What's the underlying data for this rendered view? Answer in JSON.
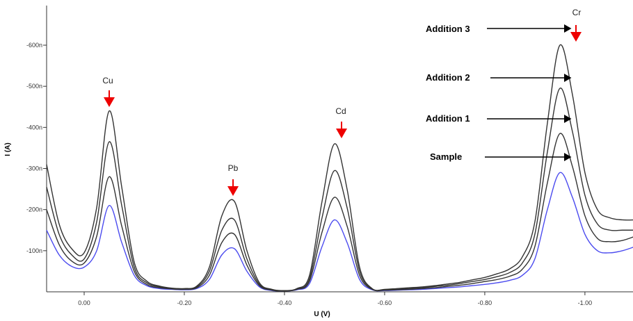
{
  "chart_data": {
    "type": "line",
    "x_label": "U (V)",
    "y_label": "I (A)",
    "annotations": [
      "Cu",
      "Pb",
      "Cd",
      "Cr"
    ],
    "x": [
      0.075,
      0.05,
      0.025,
      0,
      -0.025,
      -0.05,
      -0.075,
      -0.1,
      -0.125,
      -0.15,
      -0.175,
      -0.2,
      -0.225,
      -0.25,
      -0.275,
      -0.3,
      -0.325,
      -0.35,
      -0.375,
      -0.4,
      -0.425,
      -0.45,
      -0.475,
      -0.5,
      -0.525,
      -0.55,
      -0.575,
      -0.6,
      -0.625,
      -0.65,
      -0.675,
      -0.7,
      -0.725,
      -0.75,
      -0.775,
      -0.8,
      -0.825,
      -0.85,
      -0.875,
      -0.9,
      -0.925,
      -0.95,
      -0.975,
      -1.0,
      -1.025,
      -1.05,
      -1.075,
      -1.1
    ],
    "series": [
      {
        "name": "Sample",
        "color": "#4b4bef",
        "values": [
          -150,
          -90,
          -62,
          -60,
          -100,
          -210,
          -120,
          -40,
          -15,
          -8,
          -6,
          -5,
          -8,
          -30,
          -90,
          -105,
          -50,
          -12,
          -3,
          -2,
          -5,
          -20,
          -110,
          -175,
          -120,
          -30,
          -5,
          -3,
          -4,
          -5,
          -6,
          -8,
          -10,
          -12,
          -15,
          -18,
          -22,
          -28,
          -40,
          -80,
          -200,
          -290,
          -230,
          -140,
          -100,
          -95,
          -100,
          -110
        ]
      },
      {
        "name": "Addition 1",
        "color": "#333333",
        "values": [
          -200,
          -115,
          -75,
          -70,
          -135,
          -280,
          -160,
          -50,
          -18,
          -10,
          -7,
          -6,
          -10,
          -40,
          -120,
          -140,
          -65,
          -15,
          -4,
          -2,
          -6,
          -26,
          -145,
          -230,
          -160,
          -40,
          -6,
          -4,
          -5,
          -6,
          -8,
          -10,
          -13,
          -16,
          -20,
          -25,
          -30,
          -38,
          -55,
          -110,
          -265,
          -385,
          -305,
          -185,
          -130,
          -122,
          -125,
          -135
        ]
      },
      {
        "name": "Addition 2",
        "color": "#333333",
        "values": [
          -255,
          -140,
          -90,
          -80,
          -170,
          -365,
          -210,
          -60,
          -22,
          -12,
          -8,
          -7,
          -12,
          -50,
          -150,
          -175,
          -80,
          -18,
          -5,
          -3,
          -7,
          -32,
          -180,
          -295,
          -205,
          -50,
          -7,
          -5,
          -6,
          -8,
          -10,
          -13,
          -16,
          -20,
          -25,
          -30,
          -37,
          -47,
          -70,
          -140,
          -340,
          -495,
          -390,
          -235,
          -165,
          -150,
          -150,
          -150
        ]
      },
      {
        "name": "Addition 3",
        "color": "#333333",
        "values": [
          -310,
          -165,
          -105,
          -95,
          -205,
          -440,
          -255,
          -72,
          -26,
          -14,
          -9,
          -8,
          -14,
          -60,
          -185,
          -220,
          -100,
          -22,
          -6,
          -3,
          -8,
          -40,
          -220,
          -360,
          -250,
          -60,
          -8,
          -6,
          -8,
          -10,
          -12,
          -15,
          -19,
          -23,
          -29,
          -35,
          -44,
          -56,
          -85,
          -170,
          -410,
          -600,
          -480,
          -290,
          -200,
          -180,
          -175,
          -175
        ]
      }
    ],
    "xlim": [
      0.075,
      -1.096
    ],
    "xticks": [
      {
        "value": 0,
        "label": "0.00"
      },
      {
        "value": -0.2,
        "label": "-0.20"
      },
      {
        "value": -0.4,
        "label": "-0.40"
      },
      {
        "value": -0.6,
        "label": "-0.60"
      },
      {
        "value": -0.8,
        "label": "-0.80"
      },
      {
        "value": -1.0,
        "label": "-1.00"
      }
    ],
    "ylim": [
      0,
      -693
    ],
    "yticks": [
      {
        "value": -100,
        "label": "-100n"
      },
      {
        "value": -200,
        "label": "-200n"
      },
      {
        "value": -300,
        "label": "-300n"
      },
      {
        "value": -400,
        "label": "-400n"
      },
      {
        "value": -500,
        "label": "-500n"
      },
      {
        "value": -600,
        "label": "-600n"
      }
    ]
  }
}
